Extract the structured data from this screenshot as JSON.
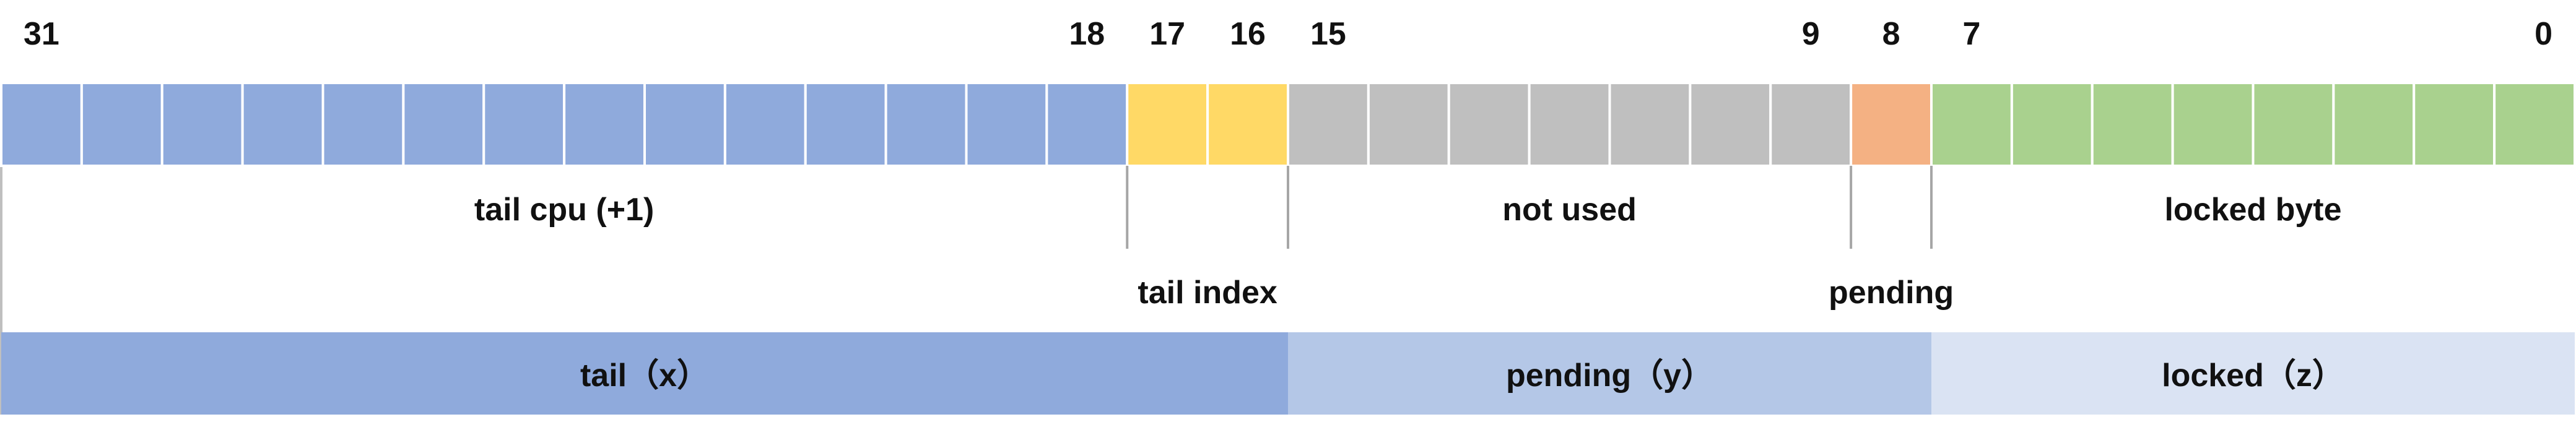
{
  "bit_numbers": [
    {
      "bit": 31,
      "label": "31"
    },
    {
      "bit": 18,
      "label": "18"
    },
    {
      "bit": 17,
      "label": "17"
    },
    {
      "bit": 16,
      "label": "16"
    },
    {
      "bit": 15,
      "label": "15"
    },
    {
      "bit": 9,
      "label": "9"
    },
    {
      "bit": 8,
      "label": "8"
    },
    {
      "bit": 7,
      "label": "7"
    },
    {
      "bit": 0,
      "label": "0"
    }
  ],
  "fields": [
    {
      "id": "tail-cpu",
      "high_bit": 31,
      "low_bit": 18,
      "color": "#8faadc",
      "label": "tail cpu (+1)"
    },
    {
      "id": "tail-index",
      "high_bit": 17,
      "low_bit": 16,
      "color": "#ffd966",
      "label": "tail index"
    },
    {
      "id": "not-used",
      "high_bit": 15,
      "low_bit": 9,
      "color": "#bfbfbf",
      "label": "not used"
    },
    {
      "id": "pending",
      "high_bit": 8,
      "low_bit": 8,
      "color": "#f4b183",
      "label": "pending"
    },
    {
      "id": "locked-byte",
      "high_bit": 7,
      "low_bit": 0,
      "color": "#a9d18e",
      "label": "locked byte"
    }
  ],
  "groups": [
    {
      "id": "tail",
      "high_bit": 31,
      "low_bit": 16,
      "color": "#8faadc",
      "label": "tail（x）"
    },
    {
      "id": "pending-group",
      "high_bit": 15,
      "low_bit": 8,
      "color": "#b4c7e7",
      "label": "pending（y）"
    },
    {
      "id": "locked-group",
      "high_bit": 7,
      "low_bit": 0,
      "color": "#dae3f3",
      "label": "locked（z）"
    }
  ],
  "colors": {
    "cell_border": "#ffffff",
    "divider": "#a6a6a6",
    "frame": "#bfbfbf"
  }
}
